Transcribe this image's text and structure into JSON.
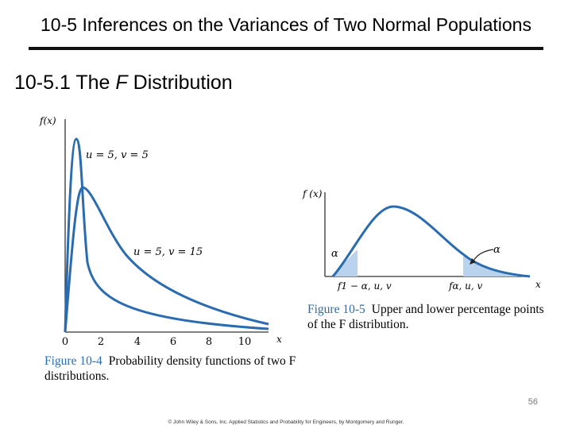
{
  "slide": {
    "title": "10-5 Inferences on the Variances of Two Normal Populations",
    "subtitle_prefix": "10-5.1 The ",
    "subtitle_italic": "F",
    "subtitle_suffix": " Distribution",
    "page_number": "56",
    "footer": "© John Wiley & Sons, Inc.  Applied Statistics and Probability for Engineers, by Montgomery and Runger."
  },
  "colors": {
    "curve": "#2b6cb0",
    "fill": "#b9d3ee",
    "accent": "#2b6cb0"
  },
  "figure4": {
    "ylabel": "f(x)",
    "xlabel": "x",
    "ticks": [
      "0",
      "2",
      "4",
      "6",
      "8",
      "10"
    ],
    "curve1_label": "u = 5, v = 5",
    "curve2_label": "u = 5, v = 15",
    "caption_num": "Figure 10-4",
    "caption_text": "Probability density functions of two F distributions."
  },
  "figure5": {
    "ylabel": "f (x)",
    "xlabel": "x",
    "alpha_left": "α",
    "alpha_right": "α",
    "lower_label": "f1 − α, u, v",
    "upper_label": "fα, u, v",
    "caption_num": "Figure 10-5",
    "caption_text": "Upper and lower percentage points of the F distribution."
  }
}
